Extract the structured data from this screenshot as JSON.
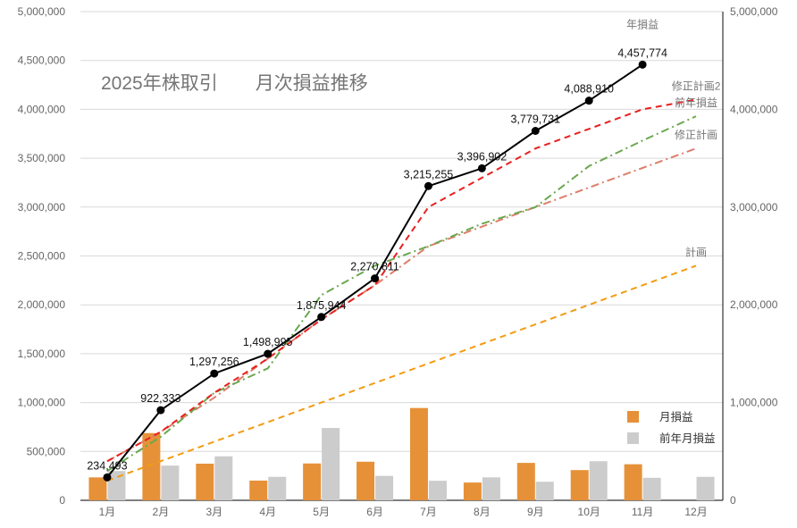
{
  "chart_data": {
    "type": "bar+line",
    "title": "2025年株取引　　月次損益推移",
    "categories": [
      "1月",
      "2月",
      "3月",
      "4月",
      "5月",
      "6月",
      "7月",
      "8月",
      "9月",
      "10月",
      "11月",
      "12月"
    ],
    "ylim": [
      0,
      5000000
    ],
    "y_ticks": [
      0,
      500000,
      1000000,
      1500000,
      2000000,
      2500000,
      3000000,
      3500000,
      4000000,
      4500000,
      5000000
    ],
    "y_tick_labels": [
      "0",
      "500,000",
      "1,000,000",
      "1,500,000",
      "2,000,000",
      "2,500,000",
      "3,000,000",
      "3,500,000",
      "4,000,000",
      "4,500,000",
      "5,000,000"
    ],
    "y2lim": [
      0,
      5000000
    ],
    "y2_ticks": [
      0,
      1000000,
      2000000,
      3000000,
      4000000,
      5000000
    ],
    "y2_tick_labels": [
      "0",
      "1,000,000",
      "2,000,000",
      "3,000,000",
      "4,000,000",
      "5,000,000"
    ],
    "grid": true,
    "legend": {
      "position": "bottom-right",
      "entries": [
        {
          "name": "月損益",
          "color": "#e69138"
        },
        {
          "name": "前年月損益",
          "color": "#cccccc"
        }
      ]
    },
    "bars": [
      {
        "name": "月損益",
        "color": "#e69138",
        "values": [
          234493,
          687840,
          374923,
          201739,
          376949,
          394867,
          944444,
          181647,
          382829,
          309179,
          368864,
          null
        ]
      },
      {
        "name": "前年月損益",
        "color": "#cccccc",
        "values": [
          300000,
          355000,
          450000,
          240000,
          740000,
          250000,
          200000,
          235000,
          190000,
          400000,
          230000,
          240000
        ]
      }
    ],
    "lines": [
      {
        "name": "年損益",
        "color": "#000000",
        "style": "solid",
        "markers": true,
        "show_values": true,
        "values": [
          234493,
          922333,
          1297256,
          1498995,
          1875944,
          2270811,
          3215255,
          3396902,
          3779731,
          4088910,
          4457774,
          null
        ],
        "value_labels": [
          "234,493",
          "922,333",
          "1,297,256",
          "1,498,995",
          "1,875,944",
          "2,270,811",
          "3,215,255",
          "3,396,902",
          "3,779,731",
          "4,088,910",
          "4,457,774",
          ""
        ]
      },
      {
        "name": "修正計画2",
        "color": "#e8201e",
        "style": "dash",
        "values": [
          400000,
          700000,
          1100000,
          1450000,
          1850000,
          2200000,
          3000000,
          3300000,
          3600000,
          3800000,
          4000000,
          4100000
        ]
      },
      {
        "name": "前年損益",
        "color": "#6aa84f",
        "style": "dashdot",
        "values": [
          300000,
          650000,
          1100000,
          1350000,
          2100000,
          2400000,
          2600000,
          2830000,
          3000000,
          3420000,
          3680000,
          3930000
        ]
      },
      {
        "name": "修正計画",
        "color": "#dd7e6b",
        "style": "dashdot",
        "values": [
          400000,
          700000,
          1050000,
          1450000,
          1850000,
          2200000,
          2600000,
          2800000,
          3000000,
          3200000,
          3400000,
          3600000
        ]
      },
      {
        "name": "計画",
        "color": "#f39c12",
        "style": "dash",
        "values": [
          200000,
          400000,
          600000,
          800000,
          1000000,
          1200000,
          1400000,
          1600000,
          1800000,
          2000000,
          2200000,
          2400000
        ]
      }
    ]
  }
}
